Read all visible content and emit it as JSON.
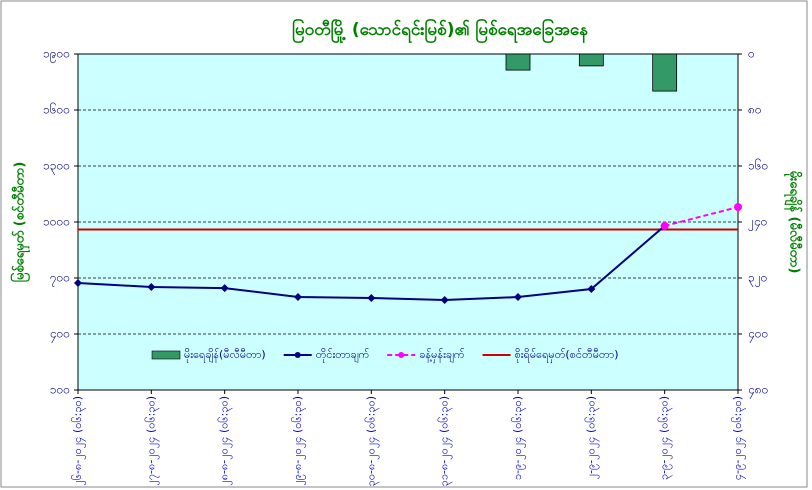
{
  "chart_data": {
    "type": "combo",
    "title": "မြဝတီမြို့ (သောင်ရင်းမြစ်)၏ မြစ်ရေအခြေအနေ",
    "ylabel": "မြစ်ရေမှတ် (စင်တီမီတာ)",
    "y2label": "မိုးရေချိန် (မီလီမီတာ)",
    "categories": [
      "၂၆-၈-၂၀၂၄ (၀၆:၃၀)",
      "၂၇-၈-၂၀၂၄ (၀၆:၃၀)",
      "၂၈-၈-၂၀၂၄ (၀၆:၃၀)",
      "၂၉-၈-၂၀၂၄ (၀၆:၃၀)",
      "၃၀-၈-၂၀၂၄ (၀၆:၃၀)",
      "၃၁-၈-၂၀၂၄ (၀၆:၃၀)",
      "၁-၉-၂၀၂၄ (၀၆:၃၀)",
      "၂-၉-၂၀၂၄ (၀၆:၃၀)",
      "၃-၉-၂၀၂၄ (၀၆:၃၀)",
      "၄-၉-၂၀၂၄ (၀၆:၃၀)"
    ],
    "series": [
      {
        "name": "မိုးရေချိန်(မီလီမီတာ)",
        "type": "bar",
        "axis": "y2",
        "color": "#339966",
        "values": [
          null,
          null,
          null,
          null,
          null,
          null,
          23,
          17,
          53,
          null
        ]
      },
      {
        "name": "တိုင်းတာချက်",
        "type": "line",
        "color": "#000080",
        "marker": "diamond",
        "values": [
          673,
          652,
          646,
          598,
          593,
          582,
          598,
          641,
          979,
          null
        ]
      },
      {
        "name": "ခန့်မှန်းချက်",
        "type": "line",
        "color": "#ff00ff",
        "dashed": true,
        "marker": "circle",
        "values": [
          null,
          null,
          null,
          null,
          null,
          null,
          null,
          null,
          979,
          1080
        ]
      }
    ],
    "reference_line": {
      "name": "စိုးရိမ်ရေမှတ်(စင်တီမီတာ)",
      "value": 960,
      "color": "#cc0000"
    },
    "ylim": [
      100,
      1900
    ],
    "yticks": [
      {
        "value": 100,
        "label": "၁၀၀"
      },
      {
        "value": 400,
        "label": "၄၀၀"
      },
      {
        "value": 700,
        "label": "၇၀၀"
      },
      {
        "value": 1000,
        "label": "၁၀၀၀"
      },
      {
        "value": 1300,
        "label": "၁၃၀၀"
      },
      {
        "value": 1600,
        "label": "၁၆၀၀"
      },
      {
        "value": 1900,
        "label": "၁၉၀၀"
      }
    ],
    "y2lim": [
      480,
      0
    ],
    "y2ticks": [
      {
        "value": 0,
        "label": "၀"
      },
      {
        "value": 80,
        "label": "၈၀"
      },
      {
        "value": 160,
        "label": "၁၆၀"
      },
      {
        "value": 240,
        "label": "၂၄၀"
      },
      {
        "value": 320,
        "label": "၃၂၀"
      },
      {
        "value": 400,
        "label": "၄၀၀"
      },
      {
        "value": 480,
        "label": "၄၈၀"
      }
    ],
    "grid": true,
    "background": "#ccffff"
  }
}
